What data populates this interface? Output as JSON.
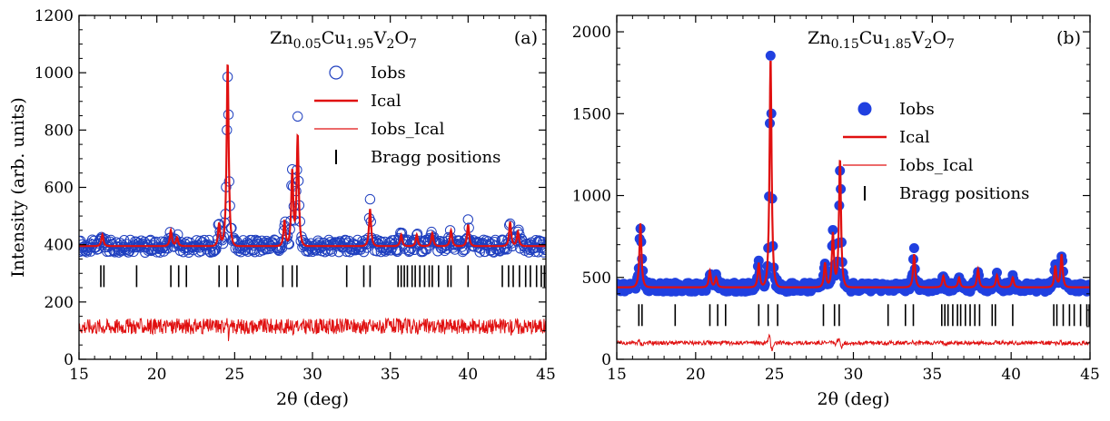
{
  "chart_data": [
    {
      "type": "scatter",
      "panel_label": "(a)",
      "title": "Zn0.05Cu1.95V2O7",
      "title_parts": {
        "base1": "Zn",
        "sub1": "0.05",
        "base2": "Cu",
        "sub2": "1.95",
        "base3": "V",
        "sub3": "2",
        "base4": "O",
        "sub4": "7"
      },
      "xlabel": "2θ (deg)",
      "ylabel": "Intensity (arb. units)",
      "xlim": [
        15,
        45
      ],
      "ylim": [
        0,
        1200
      ],
      "x_ticks": [
        15,
        20,
        25,
        30,
        35,
        40,
        45
      ],
      "y_ticks": [
        0,
        200,
        400,
        600,
        800,
        1000,
        1200
      ],
      "marker": "open-circle",
      "series": [
        {
          "name": "Iobs",
          "style": "open-circle",
          "color": "#1f3fbf"
        },
        {
          "name": "Ical",
          "style": "line",
          "color": "#e01010"
        },
        {
          "name": "Iobs_Ical",
          "style": "line",
          "color": "#e01010"
        },
        {
          "name": "Bragg positions",
          "style": "tick",
          "color": "#000000"
        }
      ],
      "background": 395,
      "difference_offset": 115,
      "bragg_y": 290,
      "peaks": [
        {
          "x": 16.5,
          "height": 40
        },
        {
          "x": 20.9,
          "height": 55
        },
        {
          "x": 21.3,
          "height": 30
        },
        {
          "x": 24.0,
          "height": 80
        },
        {
          "x": 24.55,
          "height": 640
        },
        {
          "x": 28.2,
          "height": 90
        },
        {
          "x": 28.7,
          "height": 260
        },
        {
          "x": 29.05,
          "height": 385
        },
        {
          "x": 33.7,
          "height": 130
        },
        {
          "x": 35.7,
          "height": 40
        },
        {
          "x": 36.7,
          "height": 40
        },
        {
          "x": 37.7,
          "height": 45
        },
        {
          "x": 38.9,
          "height": 55
        },
        {
          "x": 40.0,
          "height": 75
        },
        {
          "x": 42.7,
          "height": 85
        },
        {
          "x": 43.2,
          "height": 50
        }
      ],
      "bragg_positions": [
        16.4,
        16.6,
        18.7,
        20.9,
        21.4,
        21.9,
        24.0,
        24.5,
        25.2,
        28.1,
        28.7,
        29.0,
        32.2,
        33.3,
        33.7,
        35.5,
        35.7,
        35.9,
        36.1,
        36.4,
        36.6,
        36.9,
        37.2,
        37.5,
        37.7,
        38.1,
        38.7,
        38.9,
        40.0,
        42.2,
        42.6,
        42.9,
        43.3,
        43.7,
        44.0,
        44.4,
        44.7,
        44.9
      ]
    },
    {
      "type": "scatter",
      "panel_label": "(b)",
      "title": "Zn0.15Cu1.85V2O7",
      "title_parts": {
        "base1": "Zn",
        "sub1": "0.15",
        "base2": "Cu",
        "sub2": "1.85",
        "base3": "V",
        "sub3": "2",
        "base4": "O",
        "sub4": "7"
      },
      "xlabel": "2θ (deg)",
      "ylabel": "",
      "xlim": [
        15,
        45
      ],
      "ylim": [
        0,
        2100
      ],
      "x_ticks": [
        15,
        20,
        25,
        30,
        35,
        40,
        45
      ],
      "y_ticks": [
        0,
        500,
        1000,
        1500,
        2000
      ],
      "marker": "filled-circle",
      "series": [
        {
          "name": "Iobs",
          "style": "filled-circle",
          "color": "#2040e0"
        },
        {
          "name": "Ical",
          "style": "line",
          "color": "#e01010"
        },
        {
          "name": "Iobs_Ical",
          "style": "line",
          "color": "#e01010"
        },
        {
          "name": "Bragg positions",
          "style": "tick",
          "color": "#000000"
        }
      ],
      "background": 440,
      "difference_offset": 100,
      "bragg_y": 270,
      "peaks": [
        {
          "x": 16.5,
          "height": 390
        },
        {
          "x": 20.9,
          "height": 100
        },
        {
          "x": 21.3,
          "height": 60
        },
        {
          "x": 24.0,
          "height": 150
        },
        {
          "x": 24.75,
          "height": 1400
        },
        {
          "x": 28.2,
          "height": 150
        },
        {
          "x": 28.7,
          "height": 330
        },
        {
          "x": 29.15,
          "height": 780
        },
        {
          "x": 33.85,
          "height": 200
        },
        {
          "x": 35.7,
          "height": 70
        },
        {
          "x": 36.7,
          "height": 60
        },
        {
          "x": 37.9,
          "height": 110
        },
        {
          "x": 39.1,
          "height": 75
        },
        {
          "x": 40.1,
          "height": 60
        },
        {
          "x": 42.8,
          "height": 130
        },
        {
          "x": 43.2,
          "height": 200
        }
      ],
      "bragg_positions": [
        16.4,
        16.6,
        18.7,
        20.9,
        21.4,
        21.9,
        24.0,
        24.6,
        25.2,
        28.1,
        28.8,
        29.1,
        32.2,
        33.3,
        33.8,
        35.6,
        35.8,
        36.0,
        36.3,
        36.6,
        36.8,
        37.1,
        37.4,
        37.7,
        38.0,
        38.8,
        39.0,
        40.1,
        42.7,
        42.9,
        43.3,
        43.7,
        44.0,
        44.4,
        44.8,
        44.95
      ]
    }
  ]
}
